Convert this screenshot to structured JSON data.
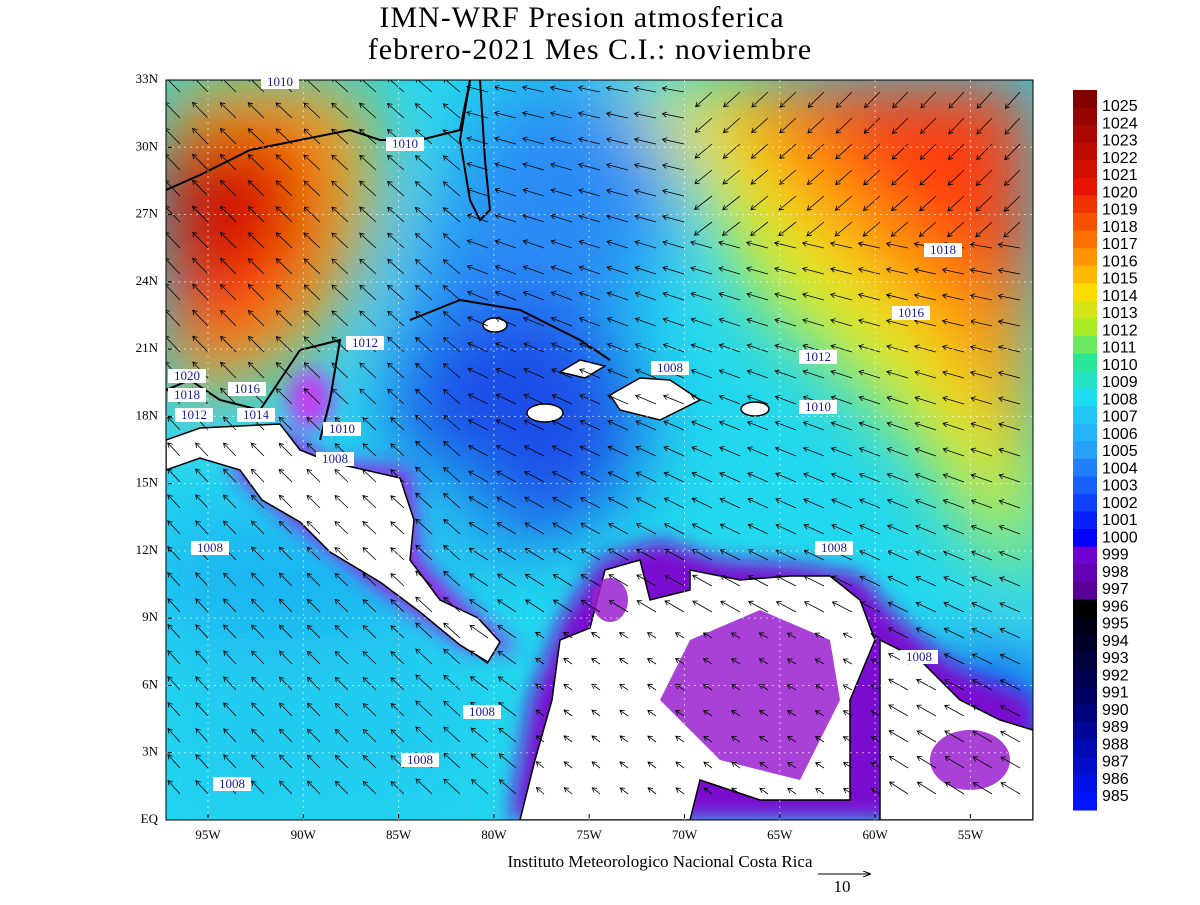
{
  "title": {
    "line1": "IMN-WRF  Presion atmosferica",
    "line2": "febrero-2021 Mes C.I.: noviembre"
  },
  "lat_labels": [
    "33N",
    "30N",
    "27N",
    "24N",
    "21N",
    "18N",
    "15N",
    "12N",
    "9N",
    "6N",
    "3N",
    "EQ"
  ],
  "lon_labels": [
    "95W",
    "90W",
    "85W",
    "80W",
    "75W",
    "70W",
    "65W",
    "60W",
    "55W"
  ],
  "colorbar_levels": [
    1025,
    1024,
    1023,
    1022,
    1021,
    1020,
    1019,
    1018,
    1017,
    1016,
    1015,
    1014,
    1013,
    1012,
    1011,
    1010,
    1009,
    1008,
    1007,
    1006,
    1005,
    1004,
    1003,
    1002,
    1001,
    1000,
    999,
    998,
    997,
    996,
    995,
    994,
    993,
    992,
    991,
    990,
    989,
    988,
    987,
    986,
    985
  ],
  "contour_labels": [
    1010,
    1010,
    1018,
    1016,
    1012,
    1012,
    1008,
    1010,
    1020,
    1016,
    1018,
    1012,
    1014,
    1010,
    1008,
    1008,
    1008,
    1008,
    1008,
    1008,
    1008
  ],
  "footer": "Instituto Meteorologico Nacional Costa Rica",
  "vector_scale": 10
}
